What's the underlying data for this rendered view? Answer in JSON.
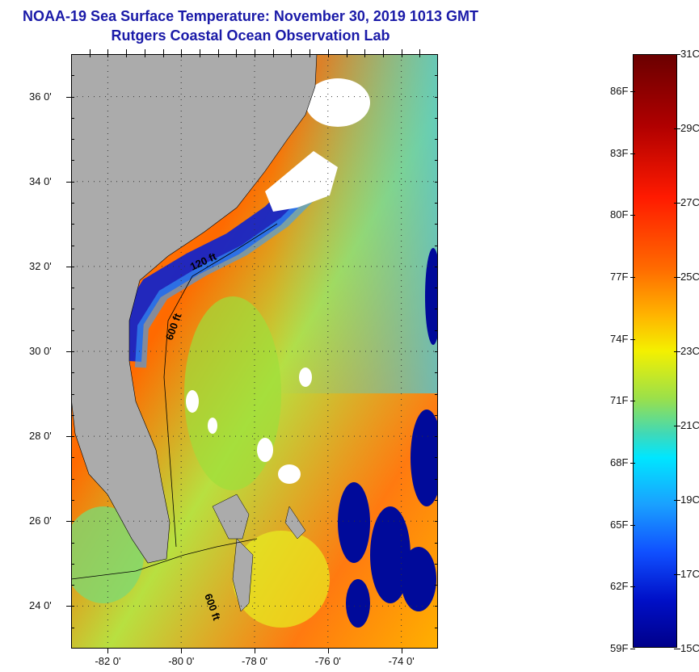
{
  "header": {
    "title": "NOAA-19 Sea Surface Temperature:  November 30, 2019 1013 GMT",
    "subtitle": "Rutgers Coastal Ocean Observation Lab"
  },
  "map": {
    "lat_labels": [
      "36 0'",
      "34 0'",
      "32 0'",
      "30 0'",
      "28 0'",
      "26 0'",
      "24 0'"
    ],
    "lat_values": [
      36,
      34,
      32,
      30,
      28,
      26,
      24
    ],
    "lon_labels": [
      "-82 0'",
      "-80 0'",
      "-78 0'",
      "-76 0'",
      "-74 0'"
    ],
    "lon_values": [
      -82,
      -80,
      -78,
      -76,
      -74
    ],
    "lat_range": [
      23.0,
      37.0
    ],
    "lon_range": [
      -83.0,
      -73.0
    ],
    "contour_labels": [
      "120 ft",
      "600 ft",
      "600 ft"
    ],
    "colors": {
      "land": "#ababab",
      "cloud": "#ffffff",
      "warm": "#ff7a10",
      "cold": "#000a9a"
    }
  },
  "colorbar": {
    "fahrenheit_labels": [
      "86F",
      "83F",
      "80F",
      "77F",
      "74F",
      "71F",
      "68F",
      "65F",
      "62F",
      "59F"
    ],
    "fahrenheit_values": [
      86,
      83,
      80,
      77,
      74,
      71,
      68,
      65,
      62,
      59
    ],
    "celsius_labels": [
      "31C",
      "29C",
      "27C",
      "25C",
      "23C",
      "21C",
      "19C",
      "17C",
      "15C"
    ],
    "celsius_values": [
      31,
      29,
      27,
      25,
      23,
      21,
      19,
      17,
      15
    ],
    "range_c": [
      15,
      31
    ]
  }
}
